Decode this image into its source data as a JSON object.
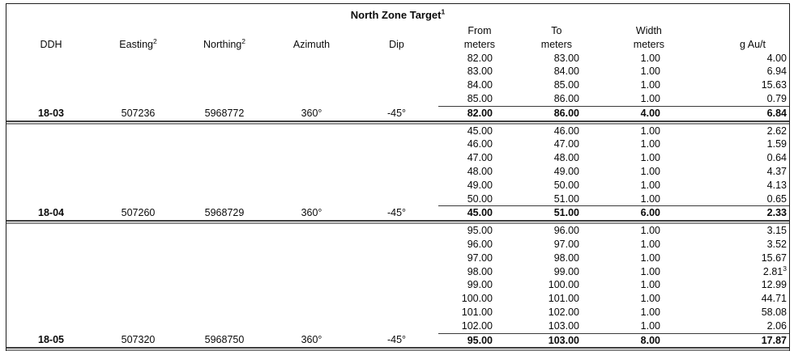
{
  "table": {
    "title": {
      "text": "North Zone Target",
      "sup": "1"
    },
    "columns": [
      {
        "key": "ddh",
        "line2": "DDH"
      },
      {
        "key": "easting",
        "line2": "Easting",
        "sup": "2"
      },
      {
        "key": "northing",
        "line2": "Northing",
        "sup": "2"
      },
      {
        "key": "azimuth",
        "line2": "Azimuth"
      },
      {
        "key": "dip",
        "line2": "Dip"
      },
      {
        "key": "from",
        "line1": "From",
        "line2": "meters"
      },
      {
        "key": "to",
        "line1": "To",
        "line2": "meters"
      },
      {
        "key": "width",
        "line1": "Width",
        "line2": "meters"
      },
      {
        "key": "grade",
        "line2": "g Au/t"
      }
    ],
    "blocks": [
      {
        "hole": {
          "ddh": "18-03",
          "easting": "507236",
          "northing": "5968772",
          "azimuth": "360°",
          "dip": "-45°"
        },
        "intervals": [
          {
            "from": "82.00",
            "to": "83.00",
            "width": "1.00",
            "grade": "4.00"
          },
          {
            "from": "83.00",
            "to": "84.00",
            "width": "1.00",
            "grade": "6.94"
          },
          {
            "from": "84.00",
            "to": "85.00",
            "width": "1.00",
            "grade": "15.63"
          },
          {
            "from": "85.00",
            "to": "86.00",
            "width": "1.00",
            "grade": "0.79"
          }
        ],
        "summary": {
          "from": "82.00",
          "to": "86.00",
          "width": "4.00",
          "grade": "6.84"
        }
      },
      {
        "hole": {
          "ddh": "18-04",
          "easting": "507260",
          "northing": "5968729",
          "azimuth": "360°",
          "dip": "-45°"
        },
        "intervals": [
          {
            "from": "45.00",
            "to": "46.00",
            "width": "1.00",
            "grade": "2.62"
          },
          {
            "from": "46.00",
            "to": "47.00",
            "width": "1.00",
            "grade": "1.59"
          },
          {
            "from": "47.00",
            "to": "48.00",
            "width": "1.00",
            "grade": "0.64"
          },
          {
            "from": "48.00",
            "to": "49.00",
            "width": "1.00",
            "grade": "4.37"
          },
          {
            "from": "49.00",
            "to": "50.00",
            "width": "1.00",
            "grade": "4.13"
          },
          {
            "from": "50.00",
            "to": "51.00",
            "width": "1.00",
            "grade": "0.65"
          }
        ],
        "summary": {
          "from": "45.00",
          "to": "51.00",
          "width": "6.00",
          "grade": "2.33"
        }
      },
      {
        "hole": {
          "ddh": "18-05",
          "easting": "507320",
          "northing": "5968750",
          "azimuth": "360°",
          "dip": "-45°"
        },
        "intervals": [
          {
            "from": "95.00",
            "to": "96.00",
            "width": "1.00",
            "grade": "3.15"
          },
          {
            "from": "96.00",
            "to": "97.00",
            "width": "1.00",
            "grade": "3.52"
          },
          {
            "from": "97.00",
            "to": "98.00",
            "width": "1.00",
            "grade": "15.67"
          },
          {
            "from": "98.00",
            "to": "99.00",
            "width": "1.00",
            "grade": "2.81",
            "grade_sup": "3"
          },
          {
            "from": "99.00",
            "to": "100.00",
            "width": "1.00",
            "grade": "12.99"
          },
          {
            "from": "100.00",
            "to": "101.00",
            "width": "1.00",
            "grade": "44.71"
          },
          {
            "from": "101.00",
            "to": "102.00",
            "width": "1.00",
            "grade": "58.08"
          },
          {
            "from": "102.00",
            "to": "103.00",
            "width": "1.00",
            "grade": "2.06"
          }
        ],
        "summary": {
          "from": "95.00",
          "to": "103.00",
          "width": "8.00",
          "grade": "17.87"
        }
      }
    ]
  }
}
